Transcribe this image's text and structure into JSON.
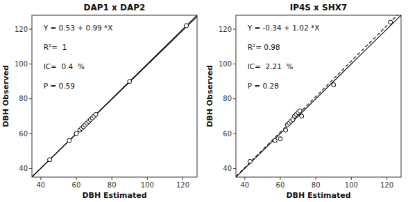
{
  "chart_data": [
    {
      "type": "scatter",
      "title": "DAP1 x DAP2",
      "xlabel": "DBH Estimated",
      "ylabel": "DBH Observed",
      "x": [
        45,
        56,
        60,
        62,
        63,
        64,
        65,
        66,
        67,
        68,
        69,
        70,
        71,
        90,
        122
      ],
      "values": [
        45,
        56,
        60,
        62,
        63,
        64,
        65,
        66,
        67,
        68,
        69,
        70,
        71,
        90,
        122
      ],
      "color": "black",
      "marker": "open-circle",
      "lines": [
        {
          "intercept": 0,
          "slope": 1,
          "color": "black",
          "line_style": "solid"
        },
        {
          "intercept": 0.53,
          "slope": 0.99,
          "color": "black",
          "line_style": "solid"
        }
      ],
      "annotations": [
        "Y = 0.53 + 0.99 *X",
        "R²=  1",
        "IC=  0.4  %",
        "P = 0.59"
      ],
      "xlim": [
        35,
        128
      ],
      "ylim": [
        35,
        128
      ],
      "xticks": [
        40,
        60,
        80,
        100,
        120
      ],
      "yticks": [
        40,
        60,
        80,
        100,
        120
      ]
    },
    {
      "type": "scatter",
      "title": "IP4S x SHX7",
      "xlabel": "DBH Estimated",
      "ylabel": "DBH Observed",
      "x": [
        43,
        57,
        60,
        63,
        64,
        65,
        66,
        67,
        68,
        69,
        70,
        71,
        72,
        90,
        122
      ],
      "values": [
        44,
        56,
        57,
        62,
        65,
        66,
        67,
        68,
        70,
        71,
        72,
        73,
        70,
        88,
        124
      ],
      "color": "black",
      "marker": "open-circle",
      "lines": [
        {
          "intercept": 0,
          "slope": 1,
          "color": "black",
          "line_style": "solid"
        },
        {
          "intercept": -0.34,
          "slope": 1.02,
          "color": "black",
          "line_style": "dashed"
        }
      ],
      "annotations": [
        "Y = -0.34 + 1.02 *X",
        "R²= 0.98",
        "IC=  2.21  %",
        "P = 0.28"
      ],
      "xlim": [
        35,
        128
      ],
      "ylim": [
        35,
        128
      ],
      "xticks": [
        40,
        60,
        80,
        100,
        120
      ],
      "yticks": [
        40,
        60,
        80,
        100,
        120
      ]
    }
  ]
}
